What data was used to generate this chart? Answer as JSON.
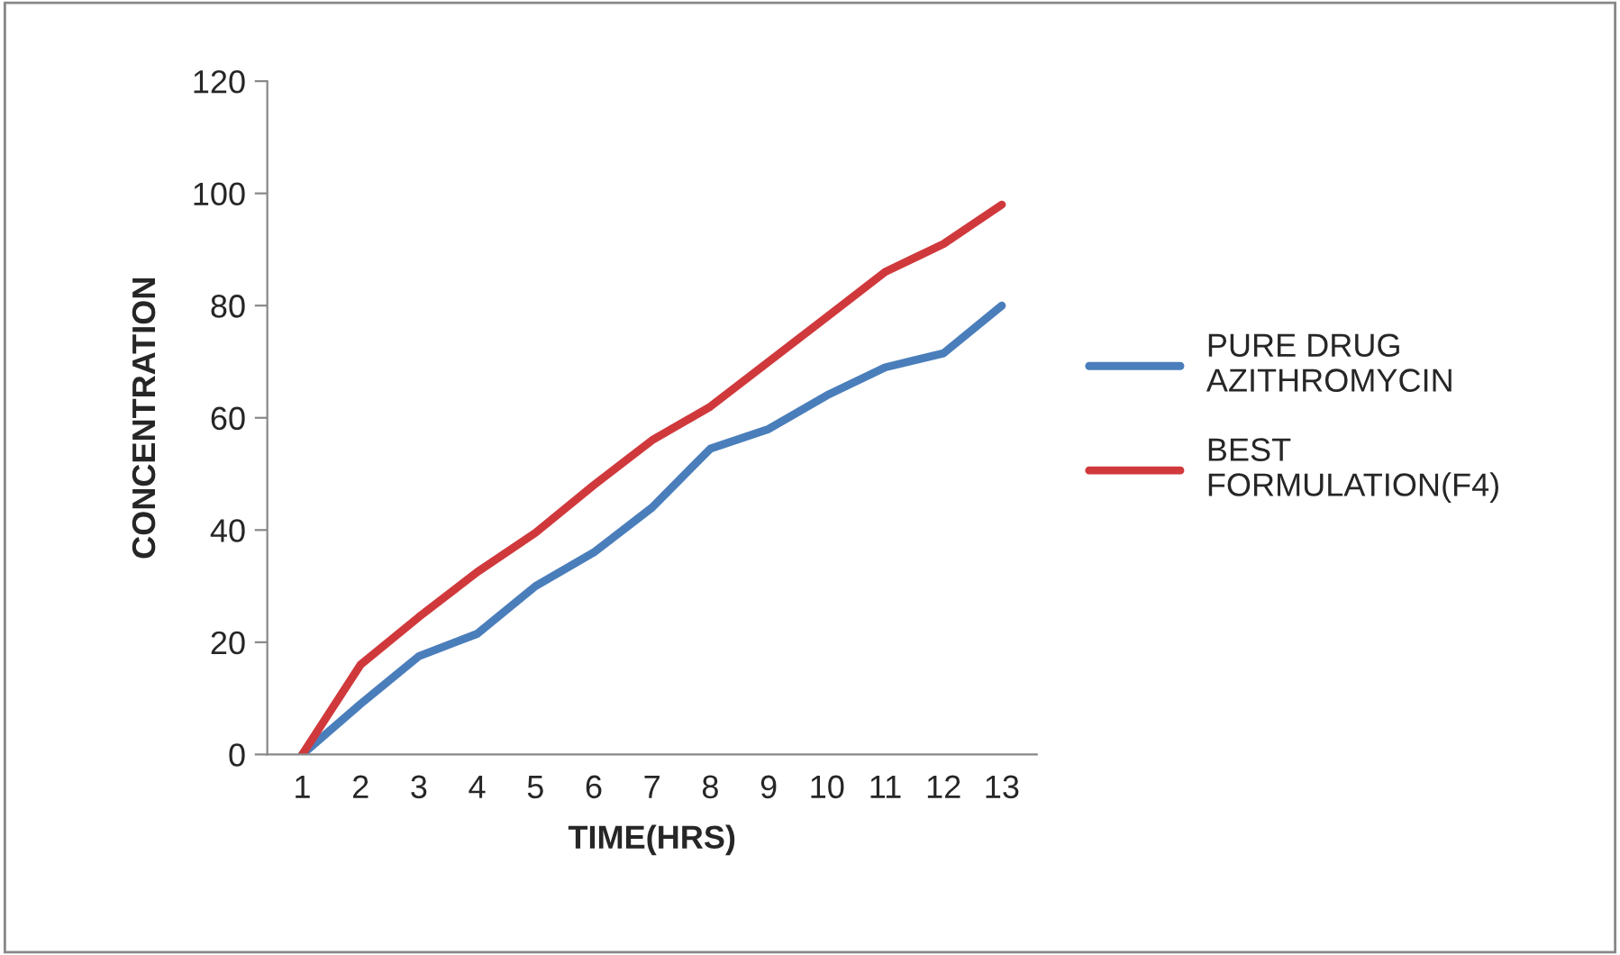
{
  "chart_data": {
    "type": "line",
    "xlabel": "TIME(HRS)",
    "ylabel": "CONCENTRATION",
    "categories": [
      "1",
      "2",
      "3",
      "4",
      "5",
      "6",
      "7",
      "8",
      "9",
      "10",
      "11",
      "12",
      "13"
    ],
    "series": [
      {
        "name": "PURE DRUG\nAZITHROMYCIN",
        "color": "#4a7ebb",
        "values": [
          0,
          9,
          17.5,
          21.5,
          30,
          36,
          44,
          54.5,
          58,
          64,
          69,
          71.5,
          80
        ]
      },
      {
        "name": "BEST\nFORMULATION(F4)",
        "color": "#d0393c",
        "values": [
          0,
          16,
          24.5,
          32.5,
          39.5,
          48,
          56,
          62,
          70,
          78,
          86,
          91,
          98
        ]
      }
    ],
    "ylim": [
      0,
      120
    ],
    "yticks": [
      0,
      20,
      40,
      60,
      80,
      100,
      120
    ],
    "grid": false,
    "legend": "right",
    "marker": "none",
    "line_style": "solid"
  }
}
